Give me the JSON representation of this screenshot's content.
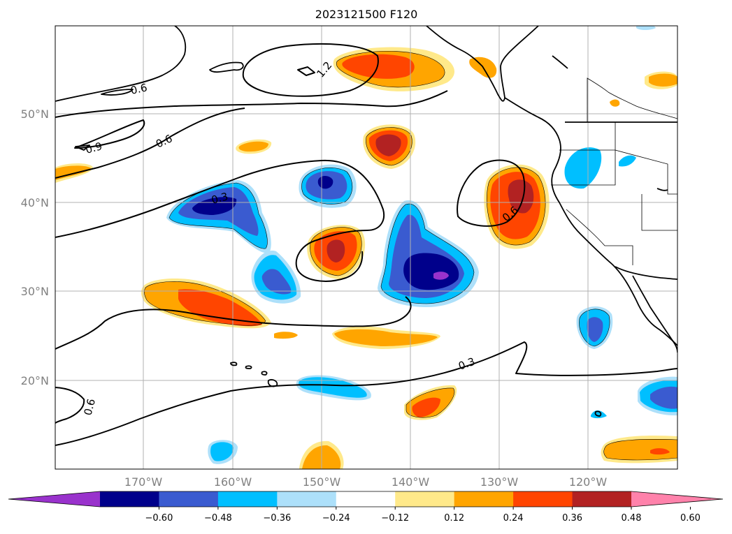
{
  "title": "2023121500 F120",
  "lat_labels": [
    "50°N",
    "40°N",
    "30°N",
    "20°N"
  ],
  "lon_labels": [
    "170°W",
    "160°W",
    "150°W",
    "140°W",
    "130°W",
    "120°W"
  ],
  "colorbar": {
    "ticks": [
      "−0.60",
      "−0.48",
      "−0.36",
      "−0.24",
      "−0.12",
      "0.12",
      "0.24",
      "0.36",
      "0.48",
      "0.60"
    ],
    "colors": [
      "#9932CC",
      "#00008B",
      "#3A5BD0",
      "#00BFFF",
      "#ADE0FA",
      "#FFFFFF",
      "#FFE98A",
      "#FFA500",
      "#FF4500",
      "#B22222",
      "#FF82AB"
    ]
  },
  "contour_labels": [
    "1.2",
    "0.6",
    "0.9",
    "0.6",
    "0.3",
    "0.6",
    "0.3",
    "0.6"
  ],
  "chart_data": {
    "type": "heatmap",
    "title": "2023121500 F120",
    "lon_range": [
      "180°W",
      "110°W"
    ],
    "lat_range": [
      "10°N",
      "60°N"
    ],
    "color_levels": [
      -0.6,
      -0.48,
      -0.36,
      -0.24,
      -0.12,
      0.12,
      0.24,
      0.36,
      0.48,
      0.6
    ],
    "contour_levels": [
      0.3,
      0.6,
      0.9,
      1.2
    ]
  }
}
